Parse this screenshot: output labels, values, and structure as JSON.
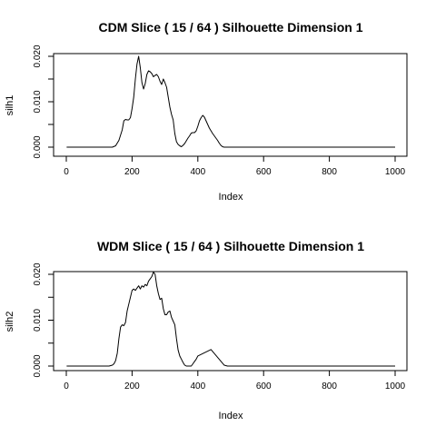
{
  "chart_data": [
    {
      "type": "line",
      "title": "CDM Slice ( 15 / 64 )  Silhouette Dimension 1",
      "xlabel": "Index",
      "ylabel": "silh1",
      "xlim": [
        0,
        1000
      ],
      "ylim": [
        0,
        0.02
      ],
      "xticks": [
        "0",
        "200",
        "400",
        "600",
        "800",
        "1000"
      ],
      "yticks": [
        "0.000",
        "0.010",
        "0.020"
      ],
      "grid": false,
      "series": [
        {
          "x": [
            1,
            140,
            150,
            160,
            170,
            175,
            180,
            185,
            190,
            195,
            200,
            205,
            210,
            215,
            220,
            225,
            230,
            235,
            240,
            245,
            250,
            255,
            260,
            265,
            270,
            275,
            280,
            285,
            290,
            295,
            300,
            305,
            310,
            315,
            320,
            325,
            330,
            335,
            340,
            345,
            350,
            355,
            360,
            365,
            370,
            375,
            380,
            385,
            390,
            395,
            400,
            405,
            410,
            415,
            420,
            425,
            430,
            435,
            440,
            445,
            450,
            455,
            460,
            465,
            470,
            475,
            480,
            490,
            500,
            600,
            700,
            800,
            900,
            1000
          ],
          "y": [
            0,
            0,
            0.0003,
            0.0015,
            0.0038,
            0.0058,
            0.0061,
            0.006,
            0.006,
            0.0065,
            0.0085,
            0.011,
            0.015,
            0.0183,
            0.02,
            0.0175,
            0.0142,
            0.0128,
            0.014,
            0.016,
            0.0168,
            0.0166,
            0.0162,
            0.0155,
            0.0158,
            0.016,
            0.0155,
            0.0145,
            0.0138,
            0.015,
            0.0142,
            0.0132,
            0.011,
            0.0088,
            0.0072,
            0.006,
            0.003,
            0.0012,
            0.0006,
            0.0003,
            0.0001,
            0.0004,
            0.0008,
            0.0014,
            0.002,
            0.0025,
            0.0031,
            0.0032,
            0.0032,
            0.0036,
            0.0046,
            0.0058,
            0.0065,
            0.007,
            0.0066,
            0.0058,
            0.005,
            0.0042,
            0.0036,
            0.003,
            0.0025,
            0.002,
            0.0015,
            0.0009,
            0.0004,
            0.0001,
            0,
            0,
            0,
            0,
            0,
            0,
            0,
            0
          ]
        }
      ]
    },
    {
      "type": "line",
      "title": "WDM Slice ( 15 / 64 )  Silhouette Dimension 1",
      "xlabel": "Index",
      "ylabel": "silh2",
      "xlim": [
        0,
        1000
      ],
      "ylim": [
        0,
        0.02
      ],
      "xticks": [
        "0",
        "200",
        "400",
        "600",
        "800",
        "1000"
      ],
      "yticks": [
        "0.000",
        "0.010",
        "0.020"
      ],
      "grid": false,
      "series": [
        {
          "x": [
            1,
            130,
            140,
            145,
            150,
            155,
            160,
            165,
            170,
            175,
            180,
            185,
            190,
            195,
            200,
            205,
            210,
            215,
            220,
            225,
            230,
            235,
            240,
            245,
            250,
            255,
            260,
            265,
            270,
            275,
            280,
            285,
            290,
            295,
            300,
            305,
            310,
            315,
            320,
            325,
            330,
            335,
            340,
            345,
            350,
            355,
            360,
            365,
            370,
            375,
            380,
            385,
            390,
            395,
            400,
            440,
            480,
            490,
            500,
            600,
            700,
            800,
            900,
            1000
          ],
          "y": [
            0,
            0,
            0.0002,
            0.0005,
            0.0012,
            0.0028,
            0.006,
            0.0085,
            0.009,
            0.0088,
            0.0095,
            0.012,
            0.0135,
            0.015,
            0.0165,
            0.0168,
            0.0165,
            0.017,
            0.0175,
            0.0168,
            0.0175,
            0.0172,
            0.0178,
            0.0175,
            0.0185,
            0.019,
            0.0195,
            0.0205,
            0.02,
            0.0175,
            0.0158,
            0.0145,
            0.0148,
            0.0125,
            0.0112,
            0.0112,
            0.0118,
            0.012,
            0.0106,
            0.0098,
            0.009,
            0.006,
            0.0035,
            0.0022,
            0.0015,
            0.0008,
            0.0002,
            0,
            0,
            0,
            0,
            0.0005,
            0.001,
            0.0015,
            0.0022,
            0.0036,
            0.0002,
            0,
            0,
            0,
            0,
            0,
            0,
            0
          ]
        }
      ]
    }
  ]
}
